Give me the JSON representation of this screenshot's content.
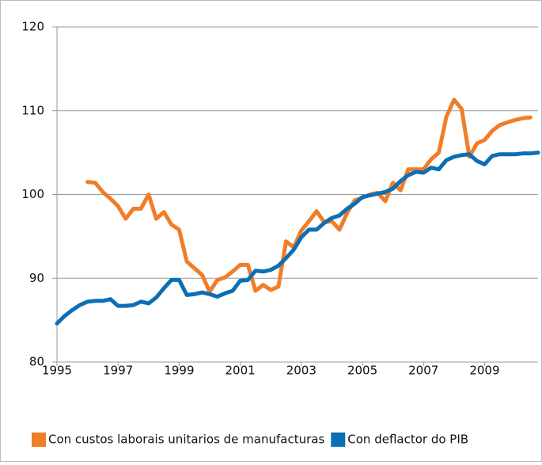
{
  "chart_data": {
    "type": "line",
    "xlim": [
      1995,
      2010.75
    ],
    "xticks": [
      1995,
      1997,
      1999,
      2001,
      2003,
      2005,
      2007,
      2009
    ],
    "ylim": [
      80,
      120
    ],
    "yticks": [
      80,
      90,
      100,
      110,
      120
    ],
    "grid": true,
    "legend": "bottom",
    "series": [
      {
        "name": "Con custos laborais unitarios de manufacturas",
        "color": "#f07d28",
        "x": [
          1996,
          1996.25,
          1996.5,
          1996.75,
          1997,
          1997.25,
          1997.5,
          1997.75,
          1998,
          1998.25,
          1998.5,
          1998.75,
          1999,
          1999.25,
          1999.5,
          1999.75,
          2000,
          2000.25,
          2000.5,
          2000.75,
          2001,
          2001.25,
          2001.5,
          2001.75,
          2002,
          2002.25,
          2002.5,
          2002.75,
          2003,
          2003.25,
          2003.5,
          2003.75,
          2004,
          2004.25,
          2004.5,
          2004.75,
          2005,
          2005.25,
          2005.5,
          2005.75,
          2006,
          2006.25,
          2006.5,
          2006.75,
          2007,
          2007.25,
          2007.5,
          2007.75,
          2008,
          2008.25,
          2008.5,
          2008.75,
          2009,
          2009.25,
          2009.5,
          2009.75,
          2010,
          2010.25,
          2010.5
        ],
        "values": [
          101.5,
          101.4,
          100.3,
          99.5,
          98.6,
          97.1,
          98.3,
          98.3,
          100.0,
          97.1,
          97.9,
          96.4,
          95.8,
          92.0,
          91.2,
          90.4,
          88.4,
          89.8,
          90.1,
          90.8,
          91.6,
          91.6,
          88.5,
          89.2,
          88.6,
          89.0,
          94.4,
          93.7,
          95.7,
          96.8,
          98.0,
          96.7,
          96.8,
          95.8,
          97.8,
          99.3,
          99.6,
          100.0,
          100.2,
          99.2,
          101.4,
          100.5,
          103.0,
          103.0,
          103.0,
          104.2,
          105.0,
          109.3,
          111.3,
          110.2,
          104.5,
          106.1,
          106.5,
          107.6,
          108.3,
          108.6,
          108.9,
          109.1,
          109.2
        ]
      },
      {
        "name": "Con deflactor do PIB",
        "color": "#0b6fb5",
        "x": [
          1995,
          1995.25,
          1995.5,
          1995.75,
          1996,
          1996.25,
          1996.5,
          1996.75,
          1997,
          1997.25,
          1997.5,
          1997.75,
          1998,
          1998.25,
          1998.5,
          1998.75,
          1999,
          1999.25,
          1999.5,
          1999.75,
          2000,
          2000.25,
          2000.5,
          2000.75,
          2001,
          2001.25,
          2001.5,
          2001.75,
          2002,
          2002.25,
          2002.5,
          2002.75,
          2003,
          2003.25,
          2003.5,
          2003.75,
          2004,
          2004.25,
          2004.5,
          2004.75,
          2005,
          2005.25,
          2005.5,
          2005.75,
          2006,
          2006.25,
          2006.5,
          2006.75,
          2007,
          2007.25,
          2007.5,
          2007.75,
          2008,
          2008.25,
          2008.5,
          2008.75,
          2009,
          2009.25,
          2009.5,
          2009.75,
          2010,
          2010.25,
          2010.5,
          2010.75
        ],
        "values": [
          84.6,
          85.5,
          86.2,
          86.8,
          87.2,
          87.3,
          87.3,
          87.5,
          86.7,
          86.7,
          86.8,
          87.2,
          87.0,
          87.7,
          88.8,
          89.8,
          89.8,
          88.0,
          88.1,
          88.3,
          88.1,
          87.8,
          88.2,
          88.5,
          89.7,
          89.8,
          90.9,
          90.8,
          91.0,
          91.5,
          92.4,
          93.4,
          94.9,
          95.8,
          95.8,
          96.6,
          97.2,
          97.5,
          98.3,
          98.9,
          99.7,
          99.9,
          100.1,
          100.3,
          100.7,
          101.6,
          102.3,
          102.7,
          102.6,
          103.2,
          103.0,
          104.1,
          104.5,
          104.7,
          104.8,
          104.0,
          103.6,
          104.6,
          104.8,
          104.8,
          104.8,
          104.9,
          104.9,
          105.0
        ]
      }
    ]
  }
}
